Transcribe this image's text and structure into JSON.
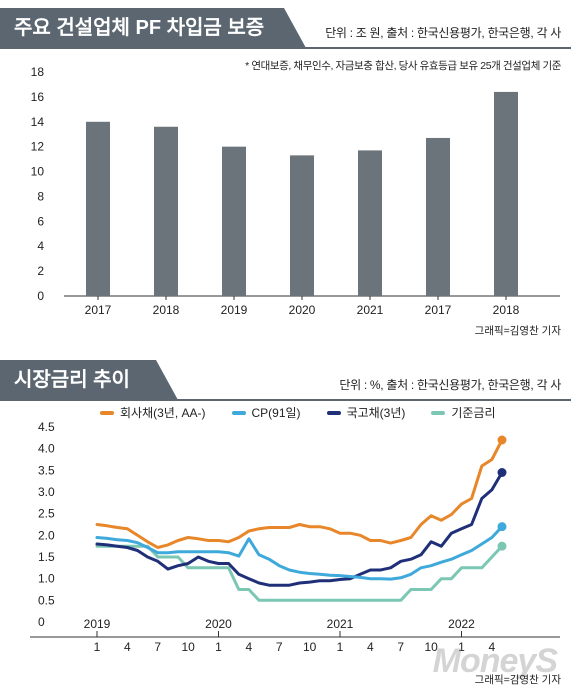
{
  "panel1": {
    "title": "주요 건설업체 PF 차입금 보증",
    "unit": "단위 : 조 원, 출처 : 한국신용평가, 한국은행, 각 사",
    "note": "* 연대보증, 채무인수, 자금보충 합산, 당사 유효등급 보유 25개 건설업체 기준",
    "credit": "그래픽=김영찬 기자"
  },
  "panel2": {
    "title": "시장금리 추이",
    "unit": "단위 : %, 출처 : 한국신용평가, 한국은행, 각 사",
    "credit": "그래픽=김영찬 기자",
    "watermark": "MoneyS"
  },
  "colors": {
    "bar": "#6b747b",
    "corporate": "#e8862a",
    "cp": "#3fa9db",
    "treasury": "#1f2f78",
    "base": "#7cc7b3"
  },
  "chart_data": [
    {
      "type": "bar",
      "title": "주요 건설업체 PF 차입금 보증",
      "categories": [
        "2017",
        "2018",
        "2019",
        "2020",
        "2021",
        "2017",
        "2018"
      ],
      "values": [
        14.0,
        13.6,
        12.0,
        11.3,
        11.7,
        12.7,
        16.4
      ],
      "yticks": [
        0,
        2,
        4,
        6,
        8,
        10,
        12,
        14,
        16,
        18
      ],
      "ylim": [
        0,
        18
      ],
      "xlabel": "",
      "ylabel": ""
    },
    {
      "type": "line",
      "title": "시장금리 추이",
      "x": [
        "2019-01",
        "2019-02",
        "2019-03",
        "2019-04",
        "2019-05",
        "2019-06",
        "2019-07",
        "2019-08",
        "2019-09",
        "2019-10",
        "2019-11",
        "2019-12",
        "2020-01",
        "2020-02",
        "2020-03",
        "2020-04",
        "2020-05",
        "2020-06",
        "2020-07",
        "2020-08",
        "2020-09",
        "2020-10",
        "2020-11",
        "2020-12",
        "2021-01",
        "2021-02",
        "2021-03",
        "2021-04",
        "2021-05",
        "2021-06",
        "2021-07",
        "2021-08",
        "2021-09",
        "2021-10",
        "2021-11",
        "2021-12",
        "2022-01",
        "2022-02",
        "2022-03",
        "2022-04",
        "2022-05"
      ],
      "xtick_years": [
        {
          "label": "2019",
          "index": 0
        },
        {
          "label": "2020",
          "index": 12
        },
        {
          "label": "2021",
          "index": 24
        },
        {
          "label": "2022",
          "index": 36
        }
      ],
      "xtick_months": [
        {
          "label": "1",
          "index": 0
        },
        {
          "label": "4",
          "index": 3
        },
        {
          "label": "7",
          "index": 6
        },
        {
          "label": "10",
          "index": 9
        },
        {
          "label": "1",
          "index": 12
        },
        {
          "label": "4",
          "index": 15
        },
        {
          "label": "7",
          "index": 18
        },
        {
          "label": "10",
          "index": 21
        },
        {
          "label": "1",
          "index": 24
        },
        {
          "label": "4",
          "index": 27
        },
        {
          "label": "7",
          "index": 30
        },
        {
          "label": "10",
          "index": 33
        },
        {
          "label": "1",
          "index": 36
        },
        {
          "label": "4",
          "index": 39
        }
      ],
      "series": [
        {
          "name": "회사채(3년, AA-)",
          "color_key": "corporate",
          "values": [
            2.25,
            2.22,
            2.18,
            2.15,
            2.0,
            1.85,
            1.72,
            1.78,
            1.88,
            1.95,
            1.92,
            1.88,
            1.88,
            1.85,
            1.95,
            2.1,
            2.15,
            2.18,
            2.18,
            2.18,
            2.25,
            2.2,
            2.2,
            2.15,
            2.05,
            2.05,
            2.0,
            1.88,
            1.88,
            1.82,
            1.88,
            1.95,
            2.25,
            2.45,
            2.35,
            2.48,
            2.72,
            2.85,
            3.6,
            3.75,
            4.2
          ],
          "end_marker": true
        },
        {
          "name": "CP(91일)",
          "color_key": "cp",
          "values": [
            1.95,
            1.93,
            1.9,
            1.88,
            1.83,
            1.72,
            1.6,
            1.6,
            1.62,
            1.62,
            1.62,
            1.62,
            1.62,
            1.6,
            1.52,
            1.92,
            1.55,
            1.45,
            1.3,
            1.2,
            1.15,
            1.12,
            1.1,
            1.08,
            1.07,
            1.05,
            1.03,
            1.0,
            1.0,
            0.99,
            1.02,
            1.1,
            1.25,
            1.3,
            1.38,
            1.45,
            1.55,
            1.65,
            1.8,
            1.95,
            2.2
          ],
          "end_marker": true
        },
        {
          "name": "국고채(3년)",
          "color_key": "treasury",
          "values": [
            1.8,
            1.78,
            1.75,
            1.72,
            1.65,
            1.5,
            1.4,
            1.22,
            1.3,
            1.35,
            1.5,
            1.4,
            1.35,
            1.35,
            1.1,
            1.0,
            0.9,
            0.85,
            0.85,
            0.85,
            0.9,
            0.92,
            0.95,
            0.95,
            0.98,
            1.0,
            1.1,
            1.2,
            1.2,
            1.25,
            1.4,
            1.45,
            1.55,
            1.85,
            1.75,
            2.05,
            2.15,
            2.25,
            2.85,
            3.05,
            3.45
          ],
          "end_marker": true
        },
        {
          "name": "기준금리",
          "color_key": "base",
          "values": [
            1.75,
            1.75,
            1.75,
            1.75,
            1.75,
            1.75,
            1.5,
            1.5,
            1.5,
            1.25,
            1.25,
            1.25,
            1.25,
            1.25,
            0.75,
            0.75,
            0.5,
            0.5,
            0.5,
            0.5,
            0.5,
            0.5,
            0.5,
            0.5,
            0.5,
            0.5,
            0.5,
            0.5,
            0.5,
            0.5,
            0.5,
            0.75,
            0.75,
            0.75,
            1.0,
            1.0,
            1.25,
            1.25,
            1.25,
            1.5,
            1.75
          ],
          "end_marker": true
        }
      ],
      "yticks": [
        0,
        0.5,
        1.0,
        1.5,
        2.0,
        2.5,
        3.0,
        3.5,
        4.0,
        4.5
      ],
      "ytick_labels": [
        "0",
        "0.5",
        "1.0",
        "1.5",
        "2.0",
        "2.5",
        "3.0",
        "3.5",
        "4.0",
        "4.5"
      ],
      "ylim": [
        0,
        4.5
      ],
      "legend_position": "top",
      "xlabel": "",
      "ylabel": ""
    }
  ]
}
